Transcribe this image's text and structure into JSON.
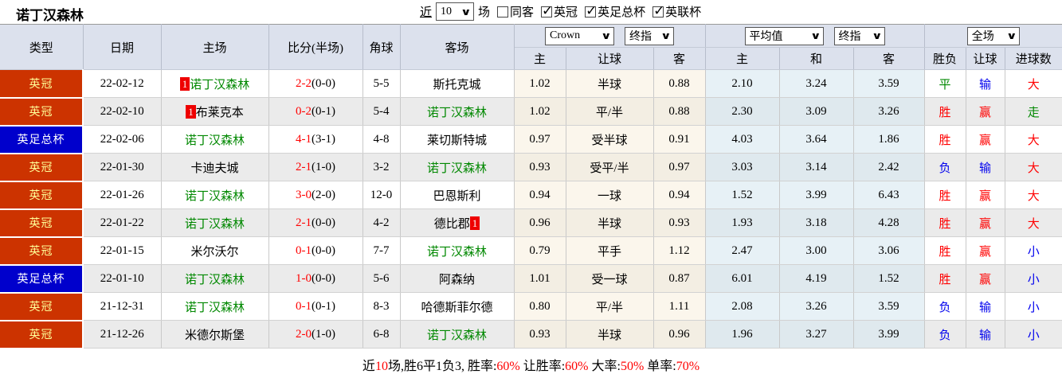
{
  "topbar": {
    "title": "诺丁汉森林",
    "near_label": "近",
    "matches_select": "10",
    "matches_label": "场",
    "checkboxes": [
      {
        "label": "同客",
        "checked": false
      },
      {
        "label": "英冠",
        "checked": true
      },
      {
        "label": "英足总杯",
        "checked": true
      },
      {
        "label": "英联杯",
        "checked": true
      }
    ]
  },
  "colors": {
    "league_championship_bg": "#cc3300",
    "league_championship_text": "#ffff99",
    "league_facup_bg": "#0000cc",
    "league_facup_text": "#ffffff",
    "win_red": "#ff0000",
    "loss_blue": "#0000ee",
    "draw_green": "#008800",
    "team_green": "#008800",
    "header_bg": "#dce1ed",
    "crown_col_bg": "#fbf6ec",
    "avg_col_bg": "#e7f1f6"
  },
  "table": {
    "left_headers": [
      "类型",
      "日期",
      "主场",
      "比分(半场)",
      "角球",
      "客场"
    ],
    "selects": {
      "crown_company": "Crown",
      "crown_time": "终指",
      "avg_company": "平均值",
      "avg_time": "终指",
      "scope": "全场"
    },
    "sub_headers": [
      "主",
      "让球",
      "客",
      "主",
      "和",
      "客",
      "胜负",
      "让球",
      "进球数"
    ],
    "rows": [
      {
        "league": "英冠",
        "league_color": "orange",
        "date": "22-02-12",
        "home": {
          "name": "诺丁汉森林",
          "green": true,
          "badge": "1",
          "badge_pos": "before"
        },
        "score": "2-2",
        "half": "(0-0)",
        "corners": "5-5",
        "away": {
          "name": "斯托克城",
          "green": false
        },
        "crown": [
          "1.02",
          "半球",
          "0.88"
        ],
        "avg": [
          "2.10",
          "3.24",
          "3.59"
        ],
        "results": [
          {
            "text": "平",
            "color": "green"
          },
          {
            "text": "输",
            "color": "blue"
          },
          {
            "text": "大",
            "color": "red"
          }
        ]
      },
      {
        "league": "英冠",
        "league_color": "orange",
        "date": "22-02-10",
        "home": {
          "name": "布莱克本",
          "green": false,
          "badge": "1",
          "badge_pos": "before"
        },
        "score": "0-2",
        "half": "(0-1)",
        "corners": "5-4",
        "away": {
          "name": "诺丁汉森林",
          "green": true
        },
        "crown": [
          "1.02",
          "平/半",
          "0.88"
        ],
        "avg": [
          "2.30",
          "3.09",
          "3.26"
        ],
        "results": [
          {
            "text": "胜",
            "color": "red"
          },
          {
            "text": "赢",
            "color": "red"
          },
          {
            "text": "走",
            "color": "green"
          }
        ]
      },
      {
        "league": "英足总杯",
        "league_color": "blue",
        "date": "22-02-06",
        "home": {
          "name": "诺丁汉森林",
          "green": true
        },
        "score": "4-1",
        "half": "(3-1)",
        "corners": "4-8",
        "away": {
          "name": "莱切斯特城",
          "green": false
        },
        "crown": [
          "0.97",
          "受半球",
          "0.91"
        ],
        "avg": [
          "4.03",
          "3.64",
          "1.86"
        ],
        "results": [
          {
            "text": "胜",
            "color": "red"
          },
          {
            "text": "赢",
            "color": "red"
          },
          {
            "text": "大",
            "color": "red"
          }
        ]
      },
      {
        "league": "英冠",
        "league_color": "orange",
        "date": "22-01-30",
        "home": {
          "name": "卡迪夫城",
          "green": false
        },
        "score": "2-1",
        "half": "(1-0)",
        "corners": "3-2",
        "away": {
          "name": "诺丁汉森林",
          "green": true
        },
        "crown": [
          "0.93",
          "受平/半",
          "0.97"
        ],
        "avg": [
          "3.03",
          "3.14",
          "2.42"
        ],
        "results": [
          {
            "text": "负",
            "color": "blue"
          },
          {
            "text": "输",
            "color": "blue"
          },
          {
            "text": "大",
            "color": "red"
          }
        ]
      },
      {
        "league": "英冠",
        "league_color": "orange",
        "date": "22-01-26",
        "home": {
          "name": "诺丁汉森林",
          "green": true
        },
        "score": "3-0",
        "half": "(2-0)",
        "corners": "12-0",
        "away": {
          "name": "巴恩斯利",
          "green": false
        },
        "crown": [
          "0.94",
          "一球",
          "0.94"
        ],
        "avg": [
          "1.52",
          "3.99",
          "6.43"
        ],
        "results": [
          {
            "text": "胜",
            "color": "red"
          },
          {
            "text": "赢",
            "color": "red"
          },
          {
            "text": "大",
            "color": "red"
          }
        ]
      },
      {
        "league": "英冠",
        "league_color": "orange",
        "date": "22-01-22",
        "home": {
          "name": "诺丁汉森林",
          "green": true
        },
        "score": "2-1",
        "half": "(0-0)",
        "corners": "4-2",
        "away": {
          "name": "德比郡",
          "green": false,
          "badge": "1",
          "badge_pos": "after"
        },
        "crown": [
          "0.96",
          "半球",
          "0.93"
        ],
        "avg": [
          "1.93",
          "3.18",
          "4.28"
        ],
        "results": [
          {
            "text": "胜",
            "color": "red"
          },
          {
            "text": "赢",
            "color": "red"
          },
          {
            "text": "大",
            "color": "red"
          }
        ]
      },
      {
        "league": "英冠",
        "league_color": "orange",
        "date": "22-01-15",
        "home": {
          "name": "米尔沃尔",
          "green": false
        },
        "score": "0-1",
        "half": "(0-0)",
        "corners": "7-7",
        "away": {
          "name": "诺丁汉森林",
          "green": true
        },
        "crown": [
          "0.79",
          "平手",
          "1.12"
        ],
        "avg": [
          "2.47",
          "3.00",
          "3.06"
        ],
        "results": [
          {
            "text": "胜",
            "color": "red"
          },
          {
            "text": "赢",
            "color": "red"
          },
          {
            "text": "小",
            "color": "blue"
          }
        ]
      },
      {
        "league": "英足总杯",
        "league_color": "blue",
        "date": "22-01-10",
        "home": {
          "name": "诺丁汉森林",
          "green": true
        },
        "score": "1-0",
        "half": "(0-0)",
        "corners": "5-6",
        "away": {
          "name": "阿森纳",
          "green": false
        },
        "crown": [
          "1.01",
          "受一球",
          "0.87"
        ],
        "avg": [
          "6.01",
          "4.19",
          "1.52"
        ],
        "results": [
          {
            "text": "胜",
            "color": "red"
          },
          {
            "text": "赢",
            "color": "red"
          },
          {
            "text": "小",
            "color": "blue"
          }
        ]
      },
      {
        "league": "英冠",
        "league_color": "orange",
        "date": "21-12-31",
        "home": {
          "name": "诺丁汉森林",
          "green": true
        },
        "score": "0-1",
        "half": "(0-1)",
        "corners": "8-3",
        "away": {
          "name": "哈德斯菲尔德",
          "green": false
        },
        "crown": [
          "0.80",
          "平/半",
          "1.11"
        ],
        "avg": [
          "2.08",
          "3.26",
          "3.59"
        ],
        "results": [
          {
            "text": "负",
            "color": "blue"
          },
          {
            "text": "输",
            "color": "blue"
          },
          {
            "text": "小",
            "color": "blue"
          }
        ]
      },
      {
        "league": "英冠",
        "league_color": "orange",
        "date": "21-12-26",
        "home": {
          "name": "米德尔斯堡",
          "green": false
        },
        "score": "2-0",
        "half": "(1-0)",
        "corners": "6-8",
        "away": {
          "name": "诺丁汉森林",
          "green": true
        },
        "crown": [
          "0.93",
          "半球",
          "0.96"
        ],
        "avg": [
          "1.96",
          "3.27",
          "3.99"
        ],
        "results": [
          {
            "text": "负",
            "color": "blue"
          },
          {
            "text": "输",
            "color": "blue"
          },
          {
            "text": "小",
            "color": "blue"
          }
        ]
      }
    ]
  },
  "summary": {
    "segments": [
      {
        "text": "近",
        "red": false
      },
      {
        "text": "10",
        "red": true
      },
      {
        "text": "场,胜6平1负3, 胜率:",
        "red": false
      },
      {
        "text": "60%",
        "red": true
      },
      {
        "text": " 让胜率:",
        "red": false
      },
      {
        "text": "60%",
        "red": true
      },
      {
        "text": " 大率:",
        "red": false
      },
      {
        "text": "50%",
        "red": true
      },
      {
        "text": " 单率:",
        "red": false
      },
      {
        "text": "70%",
        "red": true
      }
    ]
  }
}
